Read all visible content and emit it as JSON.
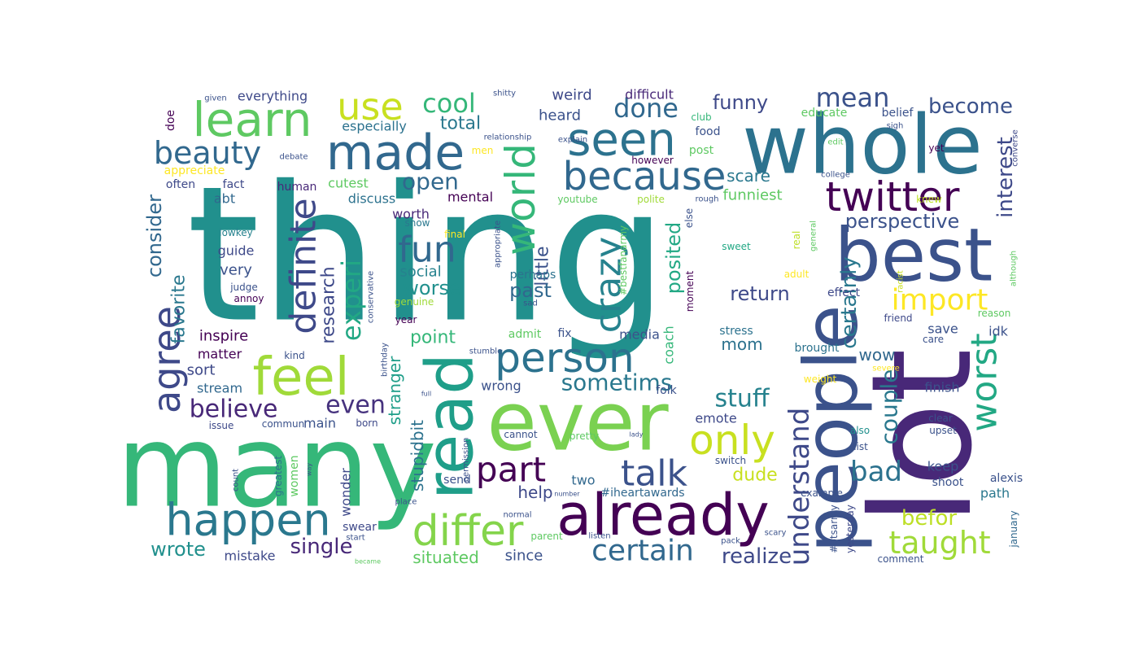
{
  "words": [
    {
      "text": "thing",
      "color": "#21908d"
    },
    {
      "text": "many",
      "color": "#35b779"
    },
    {
      "text": "whole",
      "color": "#2c728e"
    },
    {
      "text": "lot",
      "color": "#482878"
    },
    {
      "text": "people",
      "color": "#3b528b"
    },
    {
      "text": "ever",
      "color": "#7ad151"
    },
    {
      "text": "best",
      "color": "#3b528b"
    },
    {
      "text": "read",
      "color": "#1f9e89"
    },
    {
      "text": "already",
      "color": "#440154"
    },
    {
      "text": "made",
      "color": "#31688e"
    },
    {
      "text": "feel",
      "color": "#a0da39"
    },
    {
      "text": "happen",
      "color": "#2a788e"
    },
    {
      "text": "learn",
      "color": "#5ec962"
    },
    {
      "text": "seen",
      "color": "#2c728e"
    },
    {
      "text": "because",
      "color": "#31688e"
    },
    {
      "text": "twitter",
      "color": "#440154"
    },
    {
      "text": "person",
      "color": "#2c728e"
    },
    {
      "text": "differ",
      "color": "#84d44b"
    },
    {
      "text": "world",
      "color": "#35b779"
    },
    {
      "text": "definite",
      "color": "#3e4989"
    },
    {
      "text": "agree",
      "color": "#3e4989"
    },
    {
      "text": "worst",
      "color": "#22a884"
    },
    {
      "text": "only",
      "color": "#c8e020"
    },
    {
      "text": "crazy",
      "color": "#26828e"
    },
    {
      "text": "talk",
      "color": "#3b528b"
    },
    {
      "text": "part",
      "color": "#440154"
    },
    {
      "text": "use",
      "color": "#c8e020"
    },
    {
      "text": "fun",
      "color": "#31688e"
    },
    {
      "text": "beauty",
      "color": "#31688e"
    },
    {
      "text": "taught",
      "color": "#a0da39"
    },
    {
      "text": "certain",
      "color": "#31688e"
    },
    {
      "text": "understand",
      "color": "#3e4989"
    },
    {
      "text": "import",
      "color": "#fde725"
    },
    {
      "text": "bad",
      "color": "#2c728e"
    },
    {
      "text": "mean",
      "color": "#3b528b"
    },
    {
      "text": "experi",
      "color": "#22a884"
    },
    {
      "text": "cool",
      "color": "#35b779"
    },
    {
      "text": "done",
      "color": "#31688e"
    },
    {
      "text": "believe",
      "color": "#482878"
    },
    {
      "text": "even",
      "color": "#46327e"
    },
    {
      "text": "stuff",
      "color": "#26828e"
    },
    {
      "text": "sometims",
      "color": "#2a788e"
    },
    {
      "text": "couple",
      "color": "#2a788e"
    },
    {
      "text": "certainly",
      "color": "#2a788e"
    },
    {
      "text": "open",
      "color": "#31688e"
    },
    {
      "text": "become",
      "color": "#3b528b"
    },
    {
      "text": "interest",
      "color": "#3e4989"
    },
    {
      "text": "perspective",
      "color": "#3b528b"
    },
    {
      "text": "realize",
      "color": "#3e4989"
    },
    {
      "text": "befor",
      "color": "#bddf26"
    },
    {
      "text": "single",
      "color": "#482878"
    },
    {
      "text": "wrote",
      "color": "#21908d"
    },
    {
      "text": "situated",
      "color": "#5ec962"
    },
    {
      "text": "consider",
      "color": "#31688e"
    },
    {
      "text": "favorite",
      "color": "#2a788e"
    },
    {
      "text": "research",
      "color": "#3e4989"
    },
    {
      "text": "little",
      "color": "#3b528b"
    },
    {
      "text": "posited",
      "color": "#22a884"
    },
    {
      "text": "funny",
      "color": "#3e4989"
    },
    {
      "text": "worse",
      "color": "#21908d"
    },
    {
      "text": "total",
      "color": "#2a788e"
    },
    {
      "text": "past",
      "color": "#31688e"
    },
    {
      "text": "return",
      "color": "#3e4989"
    },
    {
      "text": "point",
      "color": "#35b779"
    },
    {
      "text": "dude",
      "color": "#c8e020"
    },
    {
      "text": "stranger",
      "color": "#1f9e89"
    },
    {
      "text": "help",
      "color": "#3e4989"
    },
    {
      "text": "stupidbit",
      "color": "#2c728e"
    },
    {
      "text": "scare",
      "color": "#2a788e"
    },
    {
      "text": "funniest",
      "color": "#5ec962"
    },
    {
      "text": "everything",
      "color": "#3e4989"
    },
    {
      "text": "especially",
      "color": "#2c728e"
    },
    {
      "text": "heard",
      "color": "#3b528b"
    },
    {
      "text": "weird",
      "color": "#3e4989"
    },
    {
      "text": "difficult",
      "color": "#482878"
    },
    {
      "text": "social",
      "color": "#26828e"
    },
    {
      "text": "mental",
      "color": "#440154"
    },
    {
      "text": "discuss",
      "color": "#2c728e"
    },
    {
      "text": "cutest",
      "color": "#5ec962"
    },
    {
      "text": "inspire",
      "color": "#440154"
    },
    {
      "text": "matter",
      "color": "#440154"
    },
    {
      "text": "sort",
      "color": "#3e4989"
    },
    {
      "text": "stream",
      "color": "#31688e"
    },
    {
      "text": "guide",
      "color": "#3e4989"
    },
    {
      "text": "very",
      "color": "#3b528b"
    },
    {
      "text": "abt",
      "color": "#31688e"
    },
    {
      "text": "mistake",
      "color": "#3e4989"
    },
    {
      "text": "since",
      "color": "#3b528b"
    },
    {
      "text": "mom",
      "color": "#2c728e"
    },
    {
      "text": "media",
      "color": "#3b528b"
    },
    {
      "text": "coach",
      "color": "#35b779"
    },
    {
      "text": "wrong",
      "color": "#3b528b"
    },
    {
      "text": "two",
      "color": "#31688e"
    },
    {
      "text": "wow",
      "color": "#31688e"
    },
    {
      "text": "idk",
      "color": "#3b528b"
    },
    {
      "text": "save",
      "color": "#3b528b"
    },
    {
      "text": "finish",
      "color": "#3b528b"
    },
    {
      "text": "keep",
      "color": "#3b528b"
    },
    {
      "text": "main",
      "color": "#3b528b"
    },
    {
      "text": "emote",
      "color": "#3e4989"
    },
    {
      "text": "send",
      "color": "#3b528b"
    },
    {
      "text": "worth",
      "color": "#482878"
    },
    {
      "text": "perhaps",
      "color": "#2c728e"
    },
    {
      "text": "path",
      "color": "#2a788e"
    },
    {
      "text": "alexis",
      "color": "#3b528b"
    },
    {
      "text": "shoot",
      "color": "#3b528b"
    },
    {
      "text": "women",
      "color": "#5ec962"
    },
    {
      "text": "wonder",
      "color": "#3e4989"
    },
    {
      "text": "swear",
      "color": "#3e4989"
    },
    {
      "text": "stress",
      "color": "#2c728e"
    },
    {
      "text": "brought",
      "color": "#2c728e"
    },
    {
      "text": "effect",
      "color": "#3e4989"
    },
    {
      "text": "human",
      "color": "#482878"
    },
    {
      "text": "post",
      "color": "#5ec962"
    },
    {
      "text": "food",
      "color": "#3b528b"
    },
    {
      "text": "belief",
      "color": "#3b528b"
    },
    {
      "text": "educate",
      "color": "#5ec962"
    },
    {
      "text": "club",
      "color": "#35b779"
    },
    {
      "text": "however",
      "color": "#440154"
    },
    {
      "text": "youtube",
      "color": "#5ec962"
    },
    {
      "text": "polite",
      "color": "#a0da39"
    },
    {
      "text": "snow",
      "color": "#2a788e"
    },
    {
      "text": "final",
      "color": "#fde725"
    },
    {
      "text": "genuine",
      "color": "#a0da39"
    },
    {
      "text": "admit",
      "color": "#5ec962"
    },
    {
      "text": "fix",
      "color": "#3b528b"
    },
    {
      "text": "folk",
      "color": "#3b528b"
    },
    {
      "text": "commun",
      "color": "#3b528b"
    },
    {
      "text": "born",
      "color": "#3e4989"
    },
    {
      "text": "cannot",
      "color": "#3b528b"
    },
    {
      "text": "pretty",
      "color": "#5ec962"
    },
    {
      "text": "switch",
      "color": "#3b528b"
    },
    {
      "text": "example",
      "color": "#3b528b"
    },
    {
      "text": "#iheartawards",
      "color": "#31688e"
    },
    {
      "text": "#btsarmy",
      "color": "#3b528b"
    },
    {
      "text": "yesterday",
      "color": "#3e4989"
    },
    {
      "text": "january",
      "color": "#31688e"
    },
    {
      "text": "comment",
      "color": "#3b528b"
    },
    {
      "text": "list",
      "color": "#3b528b"
    },
    {
      "text": "also",
      "color": "#21908d"
    },
    {
      "text": "upset",
      "color": "#3b528b"
    },
    {
      "text": "clear",
      "color": "#3b528b"
    },
    {
      "text": "weight",
      "color": "#fde725"
    },
    {
      "text": "severe",
      "color": "#fde725"
    },
    {
      "text": "care",
      "color": "#3b528b"
    },
    {
      "text": "friend",
      "color": "#3e4989"
    },
    {
      "text": "reason",
      "color": "#5ec962"
    },
    {
      "text": "although",
      "color": "#5ec962"
    },
    {
      "text": "racist",
      "color": "#c8e020"
    },
    {
      "text": "adult",
      "color": "#fde725"
    },
    {
      "text": "sweet",
      "color": "#22a884"
    },
    {
      "text": "real",
      "color": "#bddf26"
    },
    {
      "text": "general",
      "color": "#5ec962"
    },
    {
      "text": "lowkey",
      "color": "#26828e"
    },
    {
      "text": "judge",
      "color": "#3b528b"
    },
    {
      "text": "annoy",
      "color": "#440154"
    },
    {
      "text": "kind",
      "color": "#3b528b"
    },
    {
      "text": "issue",
      "color": "#3e4989"
    },
    {
      "text": "greatest",
      "color": "#2c728e"
    },
    {
      "text": "count",
      "color": "#3b528b"
    },
    {
      "text": "way",
      "color": "#3b528b"
    },
    {
      "text": "start",
      "color": "#3b528b"
    },
    {
      "text": "became",
      "color": "#5ec962"
    },
    {
      "text": "place",
      "color": "#3b528b"
    },
    {
      "text": "number",
      "color": "#3b528b"
    },
    {
      "text": "normal",
      "color": "#3b528b"
    },
    {
      "text": "parent",
      "color": "#5ec962"
    },
    {
      "text": "listen",
      "color": "#3b528b"
    },
    {
      "text": "pack",
      "color": "#3b528b"
    },
    {
      "text": "scary",
      "color": "#3b528b"
    },
    {
      "text": "lady",
      "color": "#3b528b"
    },
    {
      "text": "full",
      "color": "#3b528b"
    },
    {
      "text": "permission",
      "color": "#3b528b"
    },
    {
      "text": "birthday",
      "color": "#3b528b"
    },
    {
      "text": "stumble",
      "color": "#3b528b"
    },
    {
      "text": "year",
      "color": "#440154"
    },
    {
      "text": "conservative",
      "color": "#3b528b"
    },
    {
      "text": "sad",
      "color": "#3b528b"
    },
    {
      "text": "appropriate",
      "color": "#3b528b"
    },
    {
      "text": "#bestfanarmy",
      "color": "#5ec962"
    },
    {
      "text": "moment",
      "color": "#440154"
    },
    {
      "text": "else",
      "color": "#3b528b"
    },
    {
      "text": "rough",
      "color": "#3b528b"
    },
    {
      "text": "college",
      "color": "#3b528b"
    },
    {
      "text": "knew",
      "color": "#bddf26"
    },
    {
      "text": "yet",
      "color": "#440154"
    },
    {
      "text": "converse",
      "color": "#3e4989"
    },
    {
      "text": "sigh",
      "color": "#3b528b"
    },
    {
      "text": "edit",
      "color": "#5ec962"
    },
    {
      "text": "debate",
      "color": "#3b528b"
    },
    {
      "text": "relationship",
      "color": "#3b528b"
    },
    {
      "text": "explain",
      "color": "#3b528b"
    },
    {
      "text": "men",
      "color": "#fde725"
    },
    {
      "text": "shitty",
      "color": "#3b528b"
    },
    {
      "text": "given",
      "color": "#3b528b"
    },
    {
      "text": "doe",
      "color": "#440154"
    },
    {
      "text": "appreciate",
      "color": "#fde725"
    },
    {
      "text": "often",
      "color": "#3e4989"
    },
    {
      "text": "fact",
      "color": "#3e4989"
    }
  ]
}
